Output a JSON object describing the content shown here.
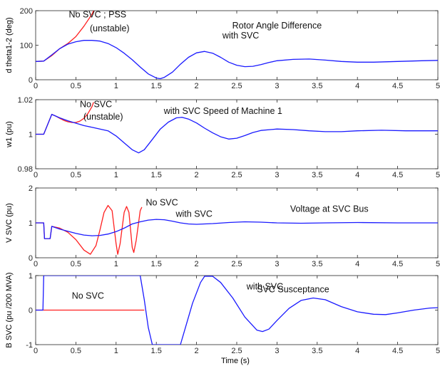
{
  "colors": {
    "no_svc": "#ff2020",
    "with_svc": "#1a1aff",
    "axes": "#262626"
  },
  "xlabel": "Time (s)",
  "chart_data": [
    {
      "type": "line",
      "ylabel": "d theta1-2 (deg)",
      "xlim": [
        0,
        5
      ],
      "ylim": [
        0,
        200
      ],
      "xticks": [
        0,
        0.5,
        1,
        1.5,
        2,
        2.5,
        3,
        3.5,
        4,
        4.5,
        5
      ],
      "xtick_labels": [
        "0",
        "0.5",
        "1",
        "1.5",
        "2",
        "2.5",
        "3",
        "3.5",
        "4",
        "4.5",
        "5"
      ],
      "yticks": [
        0,
        100,
        200
      ],
      "ytick_labels": [
        "0",
        "100",
        "200"
      ],
      "annotations": [
        {
          "text": "No SVC ;  PSS",
          "x": 0.77,
          "y": 180
        },
        {
          "text": "(unstable)",
          "x": 0.92,
          "y": 140
        },
        {
          "text": "Rotor Angle Difference",
          "x": 3.0,
          "y": 148
        },
        {
          "text": "with SVC",
          "x": 2.55,
          "y": 120
        }
      ],
      "series": [
        {
          "color": "no_svc",
          "points": [
            [
              0,
              53
            ],
            [
              0.1,
              54
            ],
            [
              0.2,
              70
            ],
            [
              0.3,
              90
            ],
            [
              0.4,
              105
            ],
            [
              0.5,
              125
            ],
            [
              0.6,
              155
            ],
            [
              0.7,
              190
            ],
            [
              0.72,
              200
            ]
          ]
        },
        {
          "color": "with_svc",
          "points": [
            [
              0,
              53
            ],
            [
              0.1,
              54
            ],
            [
              0.2,
              72
            ],
            [
              0.3,
              90
            ],
            [
              0.4,
              103
            ],
            [
              0.5,
              110
            ],
            [
              0.6,
              114
            ],
            [
              0.7,
              114
            ],
            [
              0.8,
              112
            ],
            [
              0.9,
              105
            ],
            [
              1.0,
              93
            ],
            [
              1.1,
              77
            ],
            [
              1.2,
              58
            ],
            [
              1.3,
              37
            ],
            [
              1.4,
              17
            ],
            [
              1.5,
              5
            ],
            [
              1.55,
              3
            ],
            [
              1.6,
              7
            ],
            [
              1.7,
              22
            ],
            [
              1.8,
              45
            ],
            [
              1.9,
              65
            ],
            [
              2.0,
              78
            ],
            [
              2.1,
              82
            ],
            [
              2.2,
              77
            ],
            [
              2.3,
              65
            ],
            [
              2.4,
              51
            ],
            [
              2.5,
              42
            ],
            [
              2.6,
              38
            ],
            [
              2.7,
              39
            ],
            [
              2.8,
              44
            ],
            [
              2.9,
              50
            ],
            [
              3.0,
              55
            ],
            [
              3.2,
              59
            ],
            [
              3.4,
              60
            ],
            [
              3.6,
              57
            ],
            [
              3.8,
              53
            ],
            [
              4.0,
              51
            ],
            [
              4.2,
              51
            ],
            [
              4.5,
              53
            ],
            [
              4.8,
              55
            ],
            [
              5.0,
              56
            ]
          ]
        }
      ]
    },
    {
      "type": "line",
      "ylabel": "w1 (pu)",
      "xlim": [
        0,
        5
      ],
      "ylim": [
        0.98,
        1.02
      ],
      "xticks": [
        0,
        0.5,
        1,
        1.5,
        2,
        2.5,
        3,
        3.5,
        4,
        4.5,
        5
      ],
      "xtick_labels": [
        "0",
        "0.5",
        "1",
        "1.5",
        "2",
        "2.5",
        "3",
        "3.5",
        "4",
        "4.5",
        "5"
      ],
      "yticks": [
        0.98,
        1,
        1.02
      ],
      "ytick_labels": [
        "0.98",
        "1",
        "1.02"
      ],
      "annotations": [
        {
          "text": "No SVC",
          "x": 0.75,
          "y": 1.0157
        },
        {
          "text": "(unstable)",
          "x": 0.84,
          "y": 1.0085
        },
        {
          "text": "with SVC  Speed of Machine 1",
          "x": 2.33,
          "y": 1.0117
        }
      ],
      "series": [
        {
          "color": "no_svc",
          "points": [
            [
              0,
              1.0
            ],
            [
              0.1,
              1.0
            ],
            [
              0.2,
              1.0115
            ],
            [
              0.25,
              1.0105
            ],
            [
              0.3,
              1.0092
            ],
            [
              0.35,
              1.008
            ],
            [
              0.4,
              1.0072
            ],
            [
              0.45,
              1.0068
            ],
            [
              0.5,
              1.0068
            ],
            [
              0.55,
              1.0076
            ],
            [
              0.6,
              1.0092
            ],
            [
              0.65,
              1.012
            ],
            [
              0.7,
              1.016
            ],
            [
              0.72,
              1.0185
            ]
          ]
        },
        {
          "color": "with_svc",
          "points": [
            [
              0,
              1.0
            ],
            [
              0.1,
              1.0
            ],
            [
              0.2,
              1.0115
            ],
            [
              0.3,
              1.0095
            ],
            [
              0.4,
              1.0078
            ],
            [
              0.5,
              1.0064
            ],
            [
              0.6,
              1.005
            ],
            [
              0.7,
              1.004
            ],
            [
              0.8,
              1.003
            ],
            [
              0.9,
              1.002
            ],
            [
              1.0,
              0.999
            ],
            [
              1.1,
              0.995
            ],
            [
              1.2,
              0.991
            ],
            [
              1.28,
              0.9892
            ],
            [
              1.35,
              0.991
            ],
            [
              1.45,
              0.997
            ],
            [
              1.55,
              1.003
            ],
            [
              1.65,
              1.007
            ],
            [
              1.75,
              1.0095
            ],
            [
              1.82,
              1.0098
            ],
            [
              1.9,
              1.0088
            ],
            [
              2.0,
              1.0065
            ],
            [
              2.1,
              1.0035
            ],
            [
              2.2,
              1.0008
            ],
            [
              2.3,
              0.9985
            ],
            [
              2.4,
              0.9972
            ],
            [
              2.5,
              0.9977
            ],
            [
              2.6,
              0.9992
            ],
            [
              2.7,
              1.001
            ],
            [
              2.8,
              1.0022
            ],
            [
              3.0,
              1.003
            ],
            [
              3.2,
              1.0027
            ],
            [
              3.4,
              1.002
            ],
            [
              3.6,
              1.0015
            ],
            [
              3.8,
              1.0015
            ],
            [
              4.0,
              1.002
            ],
            [
              4.3,
              1.0023
            ],
            [
              4.6,
              1.002
            ],
            [
              5.0,
              1.002
            ]
          ]
        }
      ]
    },
    {
      "type": "line",
      "ylabel": "V SVC (pu)",
      "xlim": [
        0,
        5
      ],
      "ylim": [
        0,
        2
      ],
      "xticks": [
        0,
        0.5,
        1,
        1.5,
        2,
        2.5,
        3,
        3.5,
        4,
        4.5,
        5
      ],
      "xtick_labels": [
        "0",
        "0.5",
        "1",
        "1.5",
        "2",
        "2.5",
        "3",
        "3.5",
        "4",
        "4.5",
        "5"
      ],
      "yticks": [
        0,
        1,
        2
      ],
      "ytick_labels": [
        "0",
        "1",
        "2"
      ],
      "annotations": [
        {
          "text": "No SVC",
          "x": 1.57,
          "y": 1.5
        },
        {
          "text": "with SVC",
          "x": 1.97,
          "y": 1.17
        },
        {
          "text": "Voltage at  SVC Bus",
          "x": 3.65,
          "y": 1.32
        }
      ],
      "series": [
        {
          "color": "no_svc",
          "points": [
            [
              0,
              1.0
            ],
            [
              0.1,
              1.0
            ],
            [
              0.11,
              0.55
            ],
            [
              0.18,
              0.55
            ],
            [
              0.2,
              0.9
            ],
            [
              0.3,
              0.85
            ],
            [
              0.4,
              0.73
            ],
            [
              0.5,
              0.52
            ],
            [
              0.6,
              0.22
            ],
            [
              0.68,
              0.1
            ],
            [
              0.75,
              0.35
            ],
            [
              0.8,
              0.8
            ],
            [
              0.85,
              1.3
            ],
            [
              0.9,
              1.5
            ],
            [
              0.95,
              1.35
            ],
            [
              1.0,
              0.4
            ],
            [
              1.02,
              0.1
            ],
            [
              1.05,
              0.4
            ],
            [
              1.1,
              1.3
            ],
            [
              1.13,
              1.47
            ],
            [
              1.16,
              1.3
            ],
            [
              1.2,
              0.3
            ],
            [
              1.22,
              0.15
            ],
            [
              1.25,
              0.5
            ],
            [
              1.3,
              1.35
            ],
            [
              1.32,
              1.45
            ]
          ]
        },
        {
          "color": "with_svc",
          "points": [
            [
              0,
              1.0
            ],
            [
              0.1,
              1.0
            ],
            [
              0.11,
              0.55
            ],
            [
              0.18,
              0.55
            ],
            [
              0.2,
              0.9
            ],
            [
              0.3,
              0.82
            ],
            [
              0.4,
              0.76
            ],
            [
              0.5,
              0.7
            ],
            [
              0.6,
              0.65
            ],
            [
              0.7,
              0.63
            ],
            [
              0.8,
              0.64
            ],
            [
              0.9,
              0.68
            ],
            [
              1.0,
              0.75
            ],
            [
              1.1,
              0.85
            ],
            [
              1.2,
              0.97
            ],
            [
              1.3,
              1.03
            ],
            [
              1.4,
              1.08
            ],
            [
              1.5,
              1.1
            ],
            [
              1.6,
              1.09
            ],
            [
              1.7,
              1.05
            ],
            [
              1.8,
              1.0
            ],
            [
              1.9,
              0.97
            ],
            [
              2.0,
              0.96
            ],
            [
              2.2,
              0.98
            ],
            [
              2.4,
              1.01
            ],
            [
              2.6,
              1.03
            ],
            [
              2.8,
              1.02
            ],
            [
              3.0,
              1.0
            ],
            [
              3.3,
              0.99
            ],
            [
              3.6,
              1.0
            ],
            [
              4.0,
              1.01
            ],
            [
              4.5,
              1.0
            ],
            [
              5.0,
              1.0
            ]
          ]
        }
      ]
    },
    {
      "type": "line",
      "ylabel": "B SVC (pu /200 MVA)",
      "xlabel": "Time (s)",
      "xlim": [
        0,
        5
      ],
      "ylim": [
        -1,
        1
      ],
      "xticks": [
        0,
        0.5,
        1,
        1.5,
        2,
        2.5,
        3,
        3.5,
        4,
        4.5,
        5
      ],
      "xtick_labels": [
        "0",
        "0.5",
        "1",
        "1.5",
        "2",
        "2.5",
        "3",
        "3.5",
        "4",
        "4.5",
        "5"
      ],
      "yticks": [
        -1,
        0,
        1
      ],
      "ytick_labels": [
        "-1",
        "0",
        "1"
      ],
      "annotations": [
        {
          "text": "No SVC",
          "x": 0.65,
          "y": 0.33
        },
        {
          "text": "with SVC",
          "x": 2.85,
          "y": 0.6
        },
        {
          "text": "SVC  Susceptance",
          "x": 3.2,
          "y": 0.52
        }
      ],
      "series": [
        {
          "color": "no_svc",
          "points": [
            [
              0,
              0
            ],
            [
              1.35,
              0
            ]
          ]
        },
        {
          "color": "with_svc",
          "points": [
            [
              0,
              0
            ],
            [
              0.09,
              0
            ],
            [
              0.1,
              1.0
            ],
            [
              1.3,
              1.0
            ],
            [
              1.35,
              0.3
            ],
            [
              1.4,
              -0.5
            ],
            [
              1.45,
              -1.0
            ],
            [
              1.8,
              -1.0
            ],
            [
              1.85,
              -0.6
            ],
            [
              1.95,
              0.2
            ],
            [
              2.05,
              0.8
            ],
            [
              2.1,
              0.98
            ],
            [
              2.2,
              0.98
            ],
            [
              2.3,
              0.8
            ],
            [
              2.45,
              0.35
            ],
            [
              2.6,
              -0.2
            ],
            [
              2.75,
              -0.58
            ],
            [
              2.82,
              -0.62
            ],
            [
              2.9,
              -0.55
            ],
            [
              3.0,
              -0.3
            ],
            [
              3.15,
              0.05
            ],
            [
              3.3,
              0.28
            ],
            [
              3.45,
              0.35
            ],
            [
              3.6,
              0.3
            ],
            [
              3.8,
              0.1
            ],
            [
              4.0,
              -0.05
            ],
            [
              4.2,
              -0.12
            ],
            [
              4.35,
              -0.13
            ],
            [
              4.5,
              -0.08
            ],
            [
              4.7,
              0.0
            ],
            [
              4.9,
              0.06
            ],
            [
              5.0,
              0.07
            ]
          ]
        }
      ]
    }
  ]
}
